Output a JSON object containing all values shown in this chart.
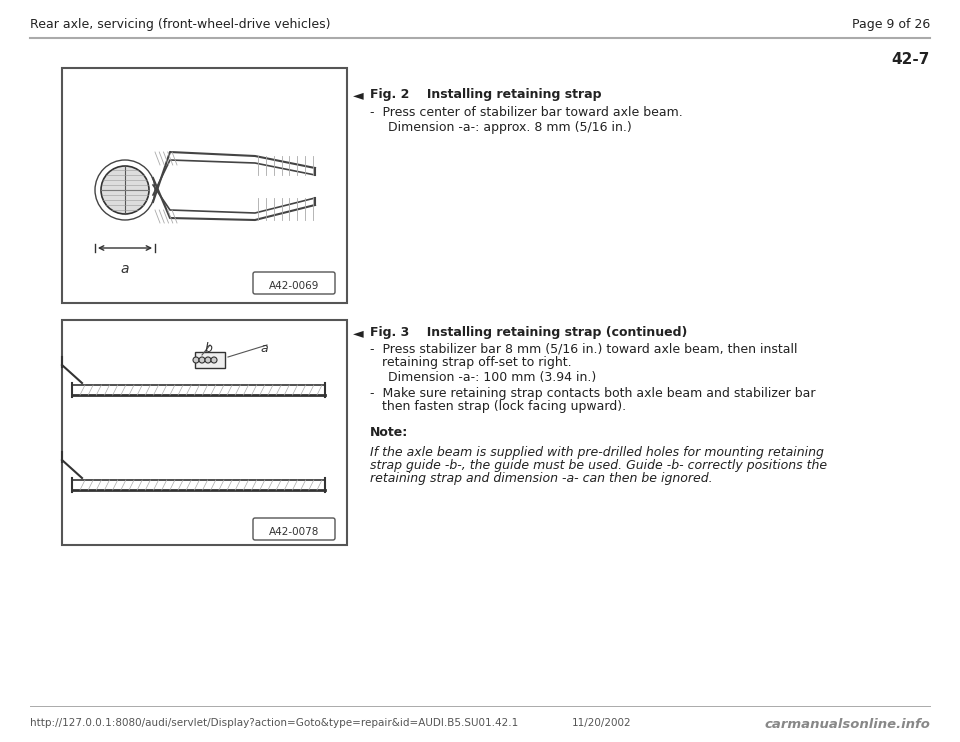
{
  "bg_color": "#f5f5f0",
  "page_bg": "#ffffff",
  "header_left": "Rear axle, servicing (front-wheel-drive vehicles)",
  "header_right": "Page 9 of 26",
  "page_number": "42-7",
  "separator_color": "#aaaaaa",
  "fig1_label": "A42-0069",
  "fig2_label": "A42-0078",
  "fig1_title": "Fig. 2    Installing retaining strap",
  "fig1_bullet": "-  Press center of stabilizer bar toward axle beam.",
  "fig1_indent": "Dimension -a-: approx. 8 mm (5/16 in.)",
  "fig2_title": "Fig. 3    Installing retaining strap (continued)",
  "fig2_bullet1a": "-  Press stabilizer bar 8 mm (5/16 in.) toward axle beam, then install",
  "fig2_bullet1b": "   retaining strap off-set to right.",
  "fig2_indent1": "Dimension -a-: 100 mm (3.94 in.)",
  "fig2_bullet2a": "-  Make sure retaining strap contacts both axle beam and stabilizer bar",
  "fig2_bullet2b": "   then fasten strap (lock facing upward).",
  "note_label": "Note:",
  "note_line1": "If the axle beam is supplied with pre-drilled holes for mounting retaining",
  "note_line2": "strap guide -b-, the guide must be used. Guide -b- correctly positions the",
  "note_line3": "retaining strap and dimension -a- can then be ignored.",
  "footer_url": "http://127.0.0.1:8080/audi/servlet/Display?action=Goto&type=repair&id=AUDI.B5.SU01.42.1",
  "footer_date": "11/20/2002",
  "footer_brand": "carmanualsonline.info",
  "text_color": "#222222",
  "header_font_size": 9,
  "body_font_size": 9,
  "note_font_size": 9,
  "title_font_size": 9
}
